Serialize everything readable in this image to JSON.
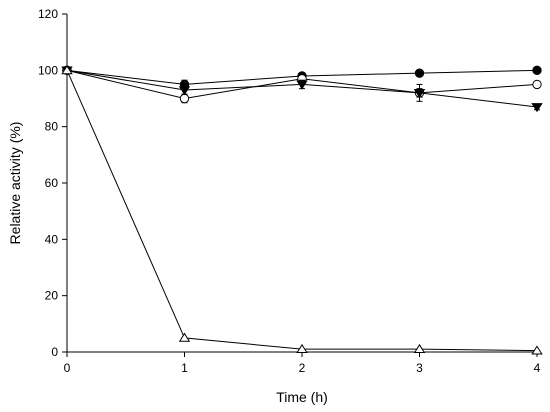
{
  "chart_data": {
    "type": "line",
    "title": "",
    "xlabel": "Time (h)",
    "ylabel": "Relative activity (%)",
    "xlim": [
      0,
      4
    ],
    "ylim": [
      0,
      120
    ],
    "xticks": [
      "0",
      "1",
      "2",
      "3",
      "4"
    ],
    "yticks": [
      "0",
      "20",
      "40",
      "60",
      "80",
      "100",
      "120"
    ],
    "grid": false,
    "legend": "none",
    "x": [
      0,
      1,
      2,
      3,
      4
    ],
    "series": [
      {
        "marker": "filled-circle",
        "values": [
          100,
          95,
          98,
          99,
          100
        ],
        "errors": [
          0,
          1.5,
          1,
          1,
          1
        ]
      },
      {
        "marker": "open-circle",
        "values": [
          100,
          90,
          97,
          92,
          95
        ],
        "errors": [
          0,
          1.5,
          1,
          1.5,
          1
        ]
      },
      {
        "marker": "filled-triangle-down",
        "values": [
          100,
          93,
          95,
          92,
          87
        ],
        "errors": [
          0,
          1.5,
          1.5,
          3,
          1
        ]
      },
      {
        "marker": "open-triangle-up",
        "values": [
          100,
          5,
          1,
          1,
          0.5
        ],
        "errors": [
          0,
          0,
          0,
          0,
          0
        ]
      }
    ],
    "colors": {
      "line": "#000000",
      "marker_fill_open": "#ffffff",
      "marker_fill_filled": "#000000"
    }
  }
}
